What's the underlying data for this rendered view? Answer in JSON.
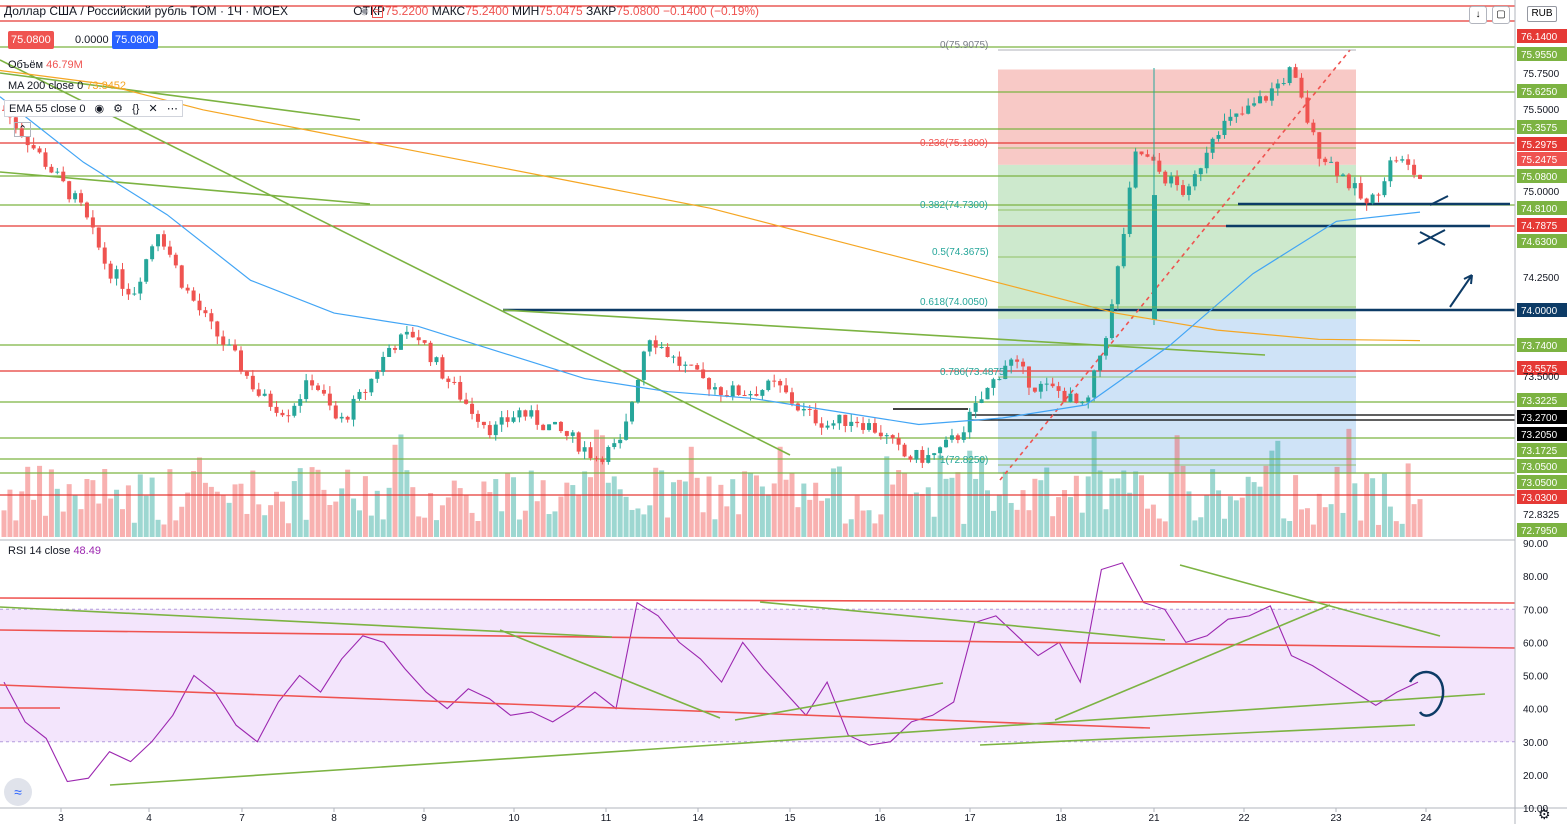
{
  "header": {
    "title": "Доллар США / Российский рубль TOM · 1Ч · MOEX",
    "ohlc": {
      "open_label": "ОТКР",
      "open": "75.2200",
      "high_label": "МАКС",
      "high": "75.2400",
      "low_label": "МИН",
      "low": "75.0475",
      "close_label": "ЗАКР",
      "close": "75.0800",
      "change": "−0.1400 (−0.19%)"
    },
    "price_boxes": [
      "75.0800",
      "0.0000",
      "75.0800"
    ]
  },
  "indicators": {
    "volume": {
      "label": "Объём",
      "value": "46.79M"
    },
    "ma": {
      "label": "MA 200 close 0",
      "value": "73.8452",
      "color": "#f5a623"
    },
    "ema": {
      "label": "EMA 55 close 0"
    },
    "rsi": {
      "label": "RSI 14 close",
      "value": "48.49",
      "color": "#9c27b0"
    }
  },
  "currency": "RUB",
  "colors": {
    "up": "#26a69a",
    "down": "#ef5350",
    "red_line": "#e53935",
    "green_line": "#7cb342",
    "navy": "#0d3b66",
    "fib_red": "#f8c9c6",
    "fib_green": "#cde9cd",
    "fib_blue": "#cfe3f7",
    "rsi_band": "#f3e5fc"
  },
  "chart_data": [
    {
      "type": "candlestick",
      "x_ticks": [
        "3",
        "4",
        "7",
        "8",
        "9",
        "10",
        "11",
        "14",
        "15",
        "16",
        "17",
        "18",
        "21",
        "22",
        "23",
        "24"
      ],
      "y_ticks": [
        "75.7500",
        "75.5000",
        "75.0000",
        "74.2500",
        "73.5000",
        "72.8325"
      ],
      "price_labels": [
        {
          "text": "76.1400",
          "kind": "red"
        },
        {
          "text": "75.9550",
          "kind": "green"
        },
        {
          "text": "75.6250",
          "kind": "green"
        },
        {
          "text": "75.3575",
          "kind": "green"
        },
        {
          "text": "75.2975",
          "kind": "red"
        },
        {
          "text": "75.2475",
          "kind": "price"
        },
        {
          "text": "75.0800",
          "kind": "green"
        },
        {
          "text": "74.8100",
          "kind": "green"
        },
        {
          "text": "74.7875",
          "kind": "red"
        },
        {
          "text": "74.6300",
          "kind": "green"
        },
        {
          "text": "74.0000",
          "kind": "navy"
        },
        {
          "text": "73.7400",
          "kind": "green"
        },
        {
          "text": "73.5575",
          "kind": "red"
        },
        {
          "text": "73.3225",
          "kind": "green"
        },
        {
          "text": "73.2700",
          "kind": "black"
        },
        {
          "text": "73.2050",
          "kind": "black"
        },
        {
          "text": "73.1725",
          "kind": "green"
        },
        {
          "text": "73.0500",
          "kind": "green"
        },
        {
          "text": "73.0500",
          "kind": "green"
        },
        {
          "text": "73.0300",
          "kind": "red"
        },
        {
          "text": "72.7950",
          "kind": "green"
        }
      ],
      "fib_levels": [
        {
          "label": "0(75.9075)"
        },
        {
          "label": "0.236(75.1800)"
        },
        {
          "label": "0.382(74.7300)"
        },
        {
          "label": "0.5(74.3675)"
        },
        {
          "label": "0.618(74.0050)"
        },
        {
          "label": "0.786(73.4875)"
        },
        {
          "label": "1(72.8250)"
        }
      ],
      "trend": [
        75.6,
        75.35,
        75.1,
        74.85,
        74.4,
        74.2,
        74.7,
        74.25,
        73.95,
        73.7,
        73.4,
        73.3,
        73.55,
        73.2,
        73.45,
        73.8,
        73.9,
        73.6,
        73.35,
        73.15,
        73.3,
        73.2,
        73.1,
        72.95,
        73.05,
        73.9,
        73.7,
        73.55,
        73.45,
        73.45,
        73.5,
        73.3,
        73.2,
        73.25,
        73.15,
        72.95,
        72.95,
        73.1,
        73.4,
        73.7,
        73.5,
        73.45,
        73.3,
        74.05,
        75.3,
        75.1,
        74.95,
        75.45,
        75.55,
        75.7,
        75.9,
        75.3,
        75.1,
        74.85,
        75.25,
        75.08
      ],
      "ma200": [
        75.9,
        75.8,
        75.6,
        75.45,
        75.3,
        75.15,
        75.0,
        74.85,
        74.65,
        74.45,
        74.25,
        74.05,
        73.92,
        73.85,
        73.84
      ],
      "ema55": [
        75.7,
        75.2,
        74.8,
        74.3,
        74.05,
        73.95,
        73.75,
        73.55,
        73.45,
        73.4,
        73.3,
        73.2,
        73.25,
        73.35,
        73.8,
        74.35,
        74.75,
        74.82
      ]
    },
    {
      "type": "line",
      "name": "RSI 14 close",
      "y_ticks": [
        "90.00",
        "80.00",
        "70.00",
        "60.00",
        "50.00",
        "40.00",
        "30.00",
        "20.00",
        "10.00"
      ],
      "ylim": [
        10,
        90
      ],
      "band": [
        30,
        70
      ],
      "values": [
        48,
        36,
        31,
        18,
        19,
        27,
        24,
        30,
        38,
        50,
        45,
        35,
        30,
        42,
        50,
        45,
        55,
        62,
        60,
        52,
        45,
        40,
        46,
        43,
        38,
        39,
        36,
        40,
        45,
        40,
        72,
        68,
        60,
        55,
        48,
        60,
        52,
        45,
        38,
        48,
        32,
        29,
        30,
        36,
        38,
        42,
        66,
        68,
        62,
        56,
        60,
        48,
        82,
        84,
        72,
        70,
        60,
        62,
        67,
        68,
        71,
        56,
        53,
        49,
        45,
        41,
        45,
        48
      ]
    }
  ]
}
